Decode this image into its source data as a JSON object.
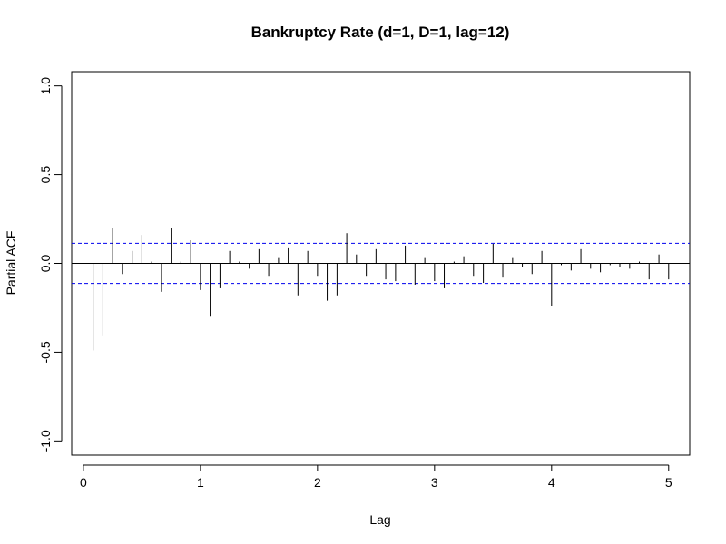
{
  "chart_data": {
    "type": "bar",
    "title": "Bankruptcy Rate (d=1, D=1, lag=12)",
    "xlabel": "Lag",
    "ylabel": "Partial ACF",
    "xlim": [
      -0.1,
      5.18
    ],
    "ylim": [
      -1.08,
      1.08
    ],
    "x_ticks": [
      0,
      1,
      2,
      3,
      4,
      5
    ],
    "x_tick_labels": [
      "0",
      "1",
      "2",
      "3",
      "4",
      "5"
    ],
    "y_ticks": [
      -1.0,
      -0.5,
      0.0,
      0.5,
      1.0
    ],
    "y_tick_labels": [
      "-1.0",
      "-0.5",
      "0.0",
      "0.5",
      "1.0"
    ],
    "confidence_bound": 0.113,
    "grid": false,
    "colors": {
      "bars": "#000000",
      "confidence": "#0000ee",
      "zero_line": "#000000"
    },
    "lags": [
      0.083,
      0.167,
      0.25,
      0.333,
      0.417,
      0.5,
      0.583,
      0.667,
      0.75,
      0.833,
      0.917,
      1.0,
      1.083,
      1.167,
      1.25,
      1.333,
      1.417,
      1.5,
      1.583,
      1.667,
      1.75,
      1.833,
      1.917,
      2.0,
      2.083,
      2.167,
      2.25,
      2.333,
      2.417,
      2.5,
      2.583,
      2.667,
      2.75,
      2.833,
      2.917,
      3.0,
      3.083,
      3.167,
      3.25,
      3.333,
      3.417,
      3.5,
      3.583,
      3.667,
      3.75,
      3.833,
      3.917,
      4.0,
      4.083,
      4.167,
      4.25,
      4.333,
      4.417,
      4.5,
      4.583,
      4.667,
      4.75,
      4.833,
      4.917,
      5.0
    ],
    "values": [
      -0.49,
      -0.41,
      0.2,
      -0.06,
      0.07,
      0.16,
      0.01,
      -0.16,
      0.2,
      0.01,
      0.13,
      -0.15,
      -0.3,
      -0.14,
      0.07,
      0.01,
      -0.03,
      0.08,
      -0.07,
      0.03,
      0.09,
      -0.18,
      0.07,
      -0.07,
      -0.21,
      -0.18,
      0.17,
      0.05,
      -0.07,
      0.08,
      -0.09,
      -0.1,
      0.1,
      -0.12,
      0.03,
      -0.1,
      -0.14,
      0.01,
      0.04,
      -0.07,
      -0.11,
      0.11,
      -0.08,
      0.03,
      -0.02,
      -0.06,
      0.07,
      -0.24,
      -0.01,
      -0.04,
      0.08,
      -0.03,
      -0.05,
      -0.01,
      -0.02,
      -0.03,
      0.01,
      -0.09,
      0.05,
      -0.09
    ]
  }
}
